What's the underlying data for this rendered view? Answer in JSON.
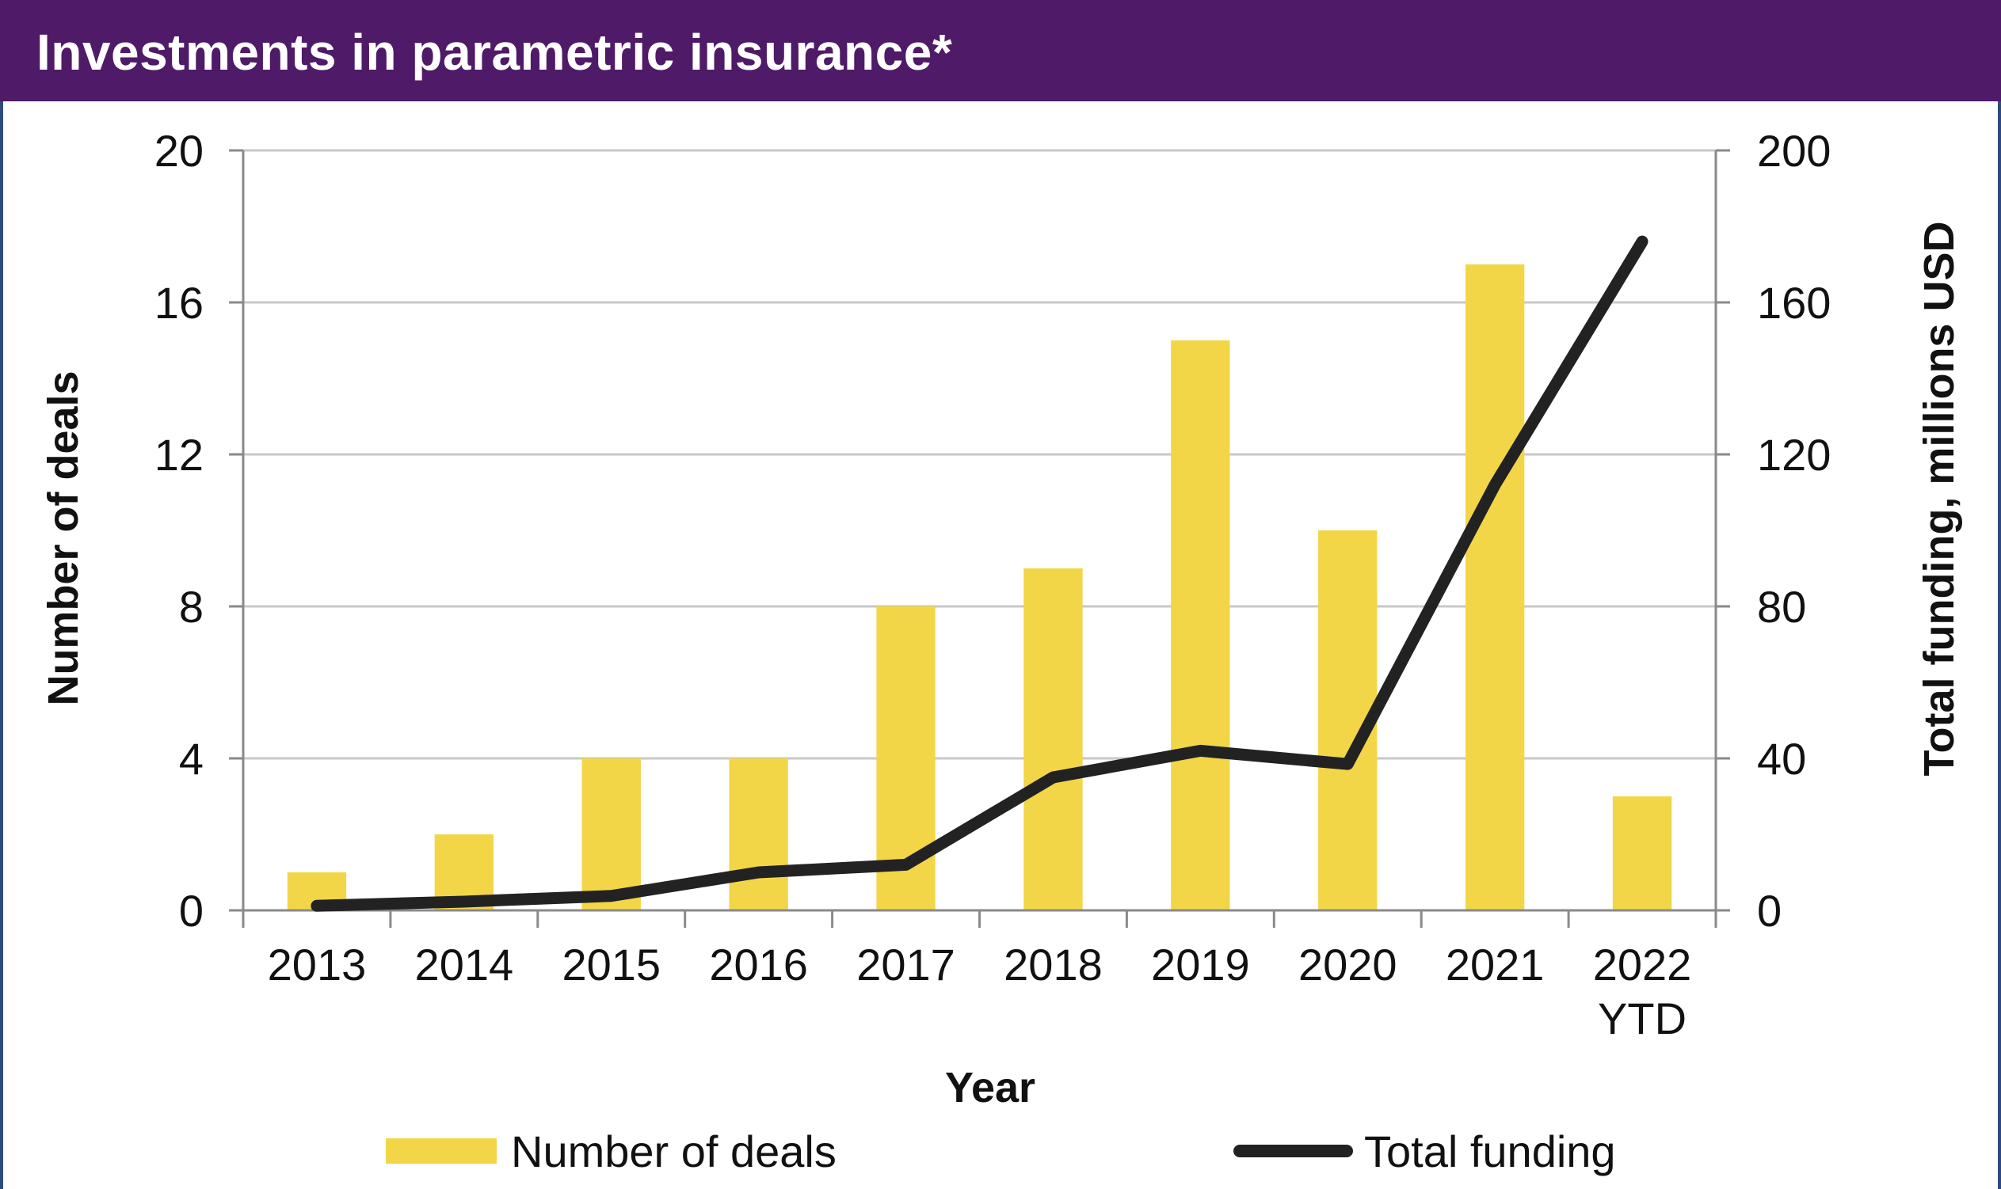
{
  "header": {
    "title": "Investments in parametric insurance*",
    "background_color": "#4f1a67",
    "text_color": "#ffffff"
  },
  "chart_data": {
    "type": "bar+line",
    "title": "Investments in parametric insurance*",
    "xlabel": "Year",
    "ylabel_left": "Number of deals",
    "ylabel_right": "Total funding, millions USD",
    "categories": [
      "2013",
      "2014",
      "2015",
      "2016",
      "2017",
      "2018",
      "2019",
      "2020",
      "2021",
      "2022 YTD"
    ],
    "category_lines": [
      [
        "2013"
      ],
      [
        "2014"
      ],
      [
        "2015"
      ],
      [
        "2016"
      ],
      [
        "2017"
      ],
      [
        "2018"
      ],
      [
        "2019"
      ],
      [
        "2020"
      ],
      [
        "2021"
      ],
      [
        "2022",
        "YTD"
      ]
    ],
    "series": [
      {
        "name": "Number of deals",
        "type": "bar",
        "axis": "left",
        "color": "#f2d648",
        "values": [
          1,
          2,
          4,
          4,
          8,
          9,
          15,
          10,
          17,
          3
        ]
      },
      {
        "name": "Total funding",
        "type": "line",
        "axis": "right",
        "color": "#222222",
        "values": [
          1.2,
          2.3,
          3.8,
          10,
          12,
          35,
          42,
          38.5,
          112,
          176
        ]
      }
    ],
    "y_left": {
      "range": [
        0,
        20
      ],
      "ticks": [
        0,
        4,
        8,
        12,
        16,
        20
      ]
    },
    "y_right": {
      "range": [
        0,
        200
      ],
      "ticks": [
        0,
        40,
        80,
        120,
        160,
        200
      ]
    },
    "grid": true,
    "grid_color": "#c8c8c8",
    "axis_color": "#8a8a8a",
    "legend": {
      "position": "bottom",
      "items": [
        {
          "label": "Number of deals",
          "kind": "bar",
          "color": "#f2d648"
        },
        {
          "label": "Total funding",
          "kind": "line",
          "color": "#222222"
        }
      ]
    }
  }
}
